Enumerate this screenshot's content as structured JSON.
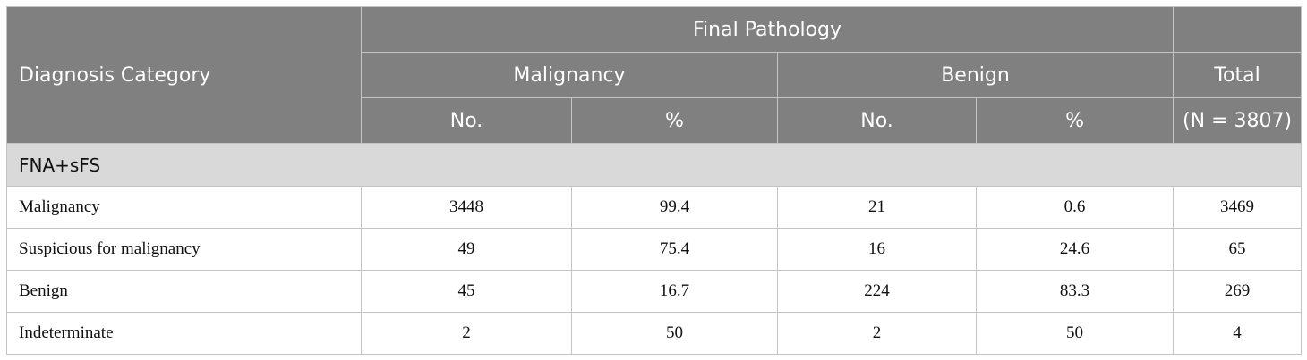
{
  "header": {
    "diagnosis_category": "Diagnosis Category",
    "final_pathology": "Final Pathology",
    "malignancy": "Malignancy",
    "benign": "Benign",
    "total": "Total",
    "no_1": "No.",
    "pct_1": "%",
    "no_2": "No.",
    "pct_2": "%",
    "total_n": "(N = 3807)"
  },
  "section": {
    "label": "FNA+sFS"
  },
  "rows": [
    {
      "category": "Malignancy",
      "mal_no": "3448",
      "mal_pct": "99.4",
      "ben_no": "21",
      "ben_pct": "0.6",
      "total": "3469"
    },
    {
      "category": "Suspicious for malignancy",
      "mal_no": "49",
      "mal_pct": "75.4",
      "ben_no": "16",
      "ben_pct": "24.6",
      "total": "65"
    },
    {
      "category": "Benign",
      "mal_no": "45",
      "mal_pct": "16.7",
      "ben_no": "224",
      "ben_pct": "83.3",
      "total": "269"
    },
    {
      "category": "Indeterminate",
      "mal_no": "2",
      "mal_pct": "50",
      "ben_no": "2",
      "ben_pct": "50",
      "total": "4"
    }
  ]
}
